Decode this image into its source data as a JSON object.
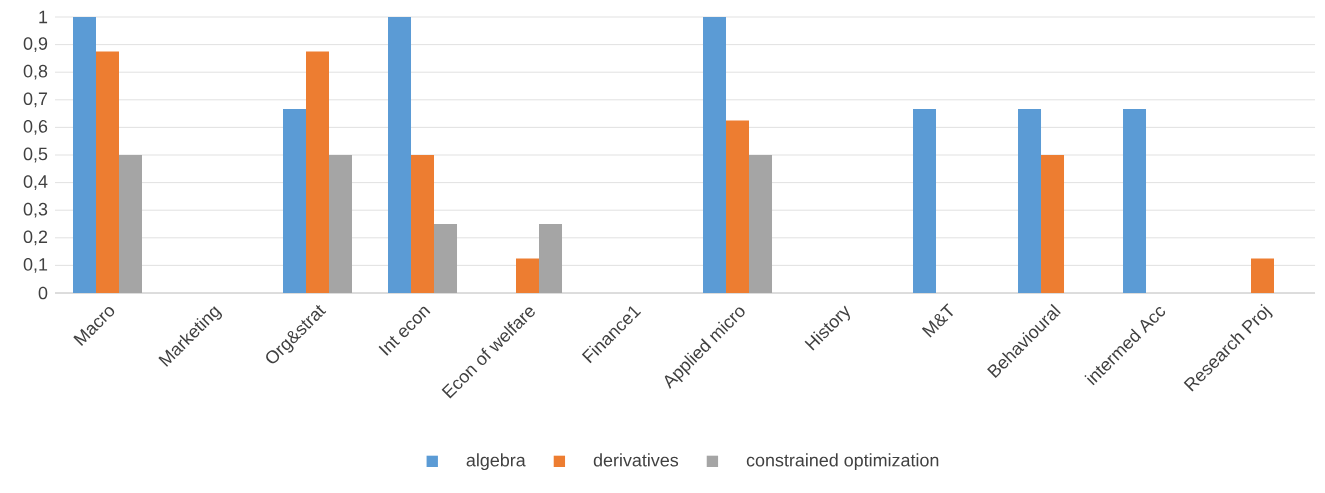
{
  "chart_data": {
    "type": "bar",
    "categories": [
      "Macro",
      "Marketing",
      "Org&strat",
      "Int econ",
      "Econ of welfare",
      "Finance1",
      "Applied micro",
      "History",
      "M&T",
      "Behavioural",
      "intermed Acc",
      "Research Proj"
    ],
    "series": [
      {
        "name": "algebra",
        "color": "#5b9bd5",
        "values": [
          1,
          0,
          0.667,
          1,
          0,
          0,
          1,
          0,
          0.667,
          0.667,
          0.667,
          0
        ]
      },
      {
        "name": "derivatives",
        "color": "#ed7d31",
        "values": [
          0.875,
          0,
          0.875,
          0.5,
          0.125,
          0,
          0.625,
          0,
          0,
          0.5,
          0,
          0.125
        ]
      },
      {
        "name": "constrained optimization",
        "color": "#a5a5a5",
        "values": [
          0.5,
          0,
          0.5,
          0.25,
          0.25,
          0,
          0.5,
          0,
          0,
          0,
          0,
          0
        ]
      }
    ],
    "ylim": [
      0,
      1
    ],
    "yticks": [
      0,
      {
        "value": 0.1,
        "label": "0,1"
      },
      {
        "value": 0.2,
        "label": "0,2"
      },
      {
        "value": 0.3,
        "label": "0,3"
      },
      {
        "value": 0.4,
        "label": "0,4"
      },
      {
        "value": 0.5,
        "label": "0,5"
      },
      {
        "value": 0.6,
        "label": "0,6"
      },
      {
        "value": 0.7,
        "label": "0,7"
      },
      {
        "value": 0.8,
        "label": "0,8"
      },
      {
        "value": 0.9,
        "label": "0,9"
      },
      1
    ],
    "grid": "y",
    "legend": "bottom"
  }
}
